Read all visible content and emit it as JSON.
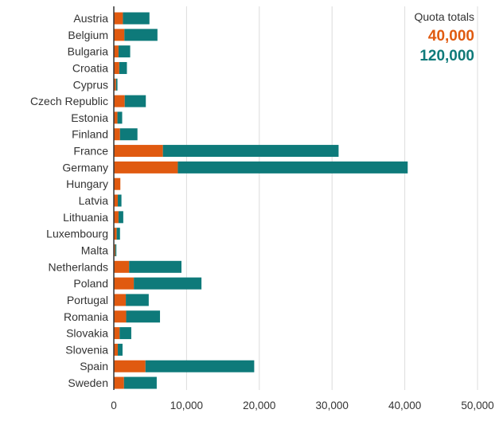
{
  "chart_data": {
    "type": "bar",
    "orientation": "horizontal",
    "stacked": true,
    "title": "",
    "xlabel": "",
    "ylabel": "",
    "xlim": [
      0,
      50000
    ],
    "grid": true,
    "x_ticks": [
      "0",
      "10,000",
      "20,000",
      "30,000",
      "40,000",
      "50,000"
    ],
    "x_tick_values": [
      0,
      10000,
      20000,
      30000,
      40000,
      50000
    ],
    "categories": [
      "Austria",
      "Belgium",
      "Bulgaria",
      "Croatia",
      "Cyprus",
      "Czech Republic",
      "Estonia",
      "Finland",
      "France",
      "Germany",
      "Hungary",
      "Latvia",
      "Lithuania",
      "Luxembourg",
      "Malta",
      "Netherlands",
      "Poland",
      "Portugal",
      "Romania",
      "Slovakia",
      "Slovenia",
      "Spain",
      "Sweden"
    ],
    "series": [
      {
        "name": "40,000",
        "color": "#e05a10",
        "values": [
          1250,
          1450,
          650,
          750,
          300,
          1500,
          500,
          850,
          6750,
          8800,
          900,
          550,
          650,
          400,
          200,
          2100,
          2750,
          1650,
          1700,
          800,
          550,
          4350,
          1400
        ]
      },
      {
        "name": "120,000",
        "color": "#0e7a7a",
        "values": [
          3650,
          4550,
          1600,
          1050,
          200,
          2900,
          650,
          2400,
          24150,
          31600,
          0,
          500,
          650,
          450,
          150,
          7200,
          9300,
          3150,
          4650,
          1600,
          650,
          14950,
          4500
        ]
      }
    ],
    "legend": {
      "title": "Quota totals",
      "placement": "top-right"
    }
  }
}
